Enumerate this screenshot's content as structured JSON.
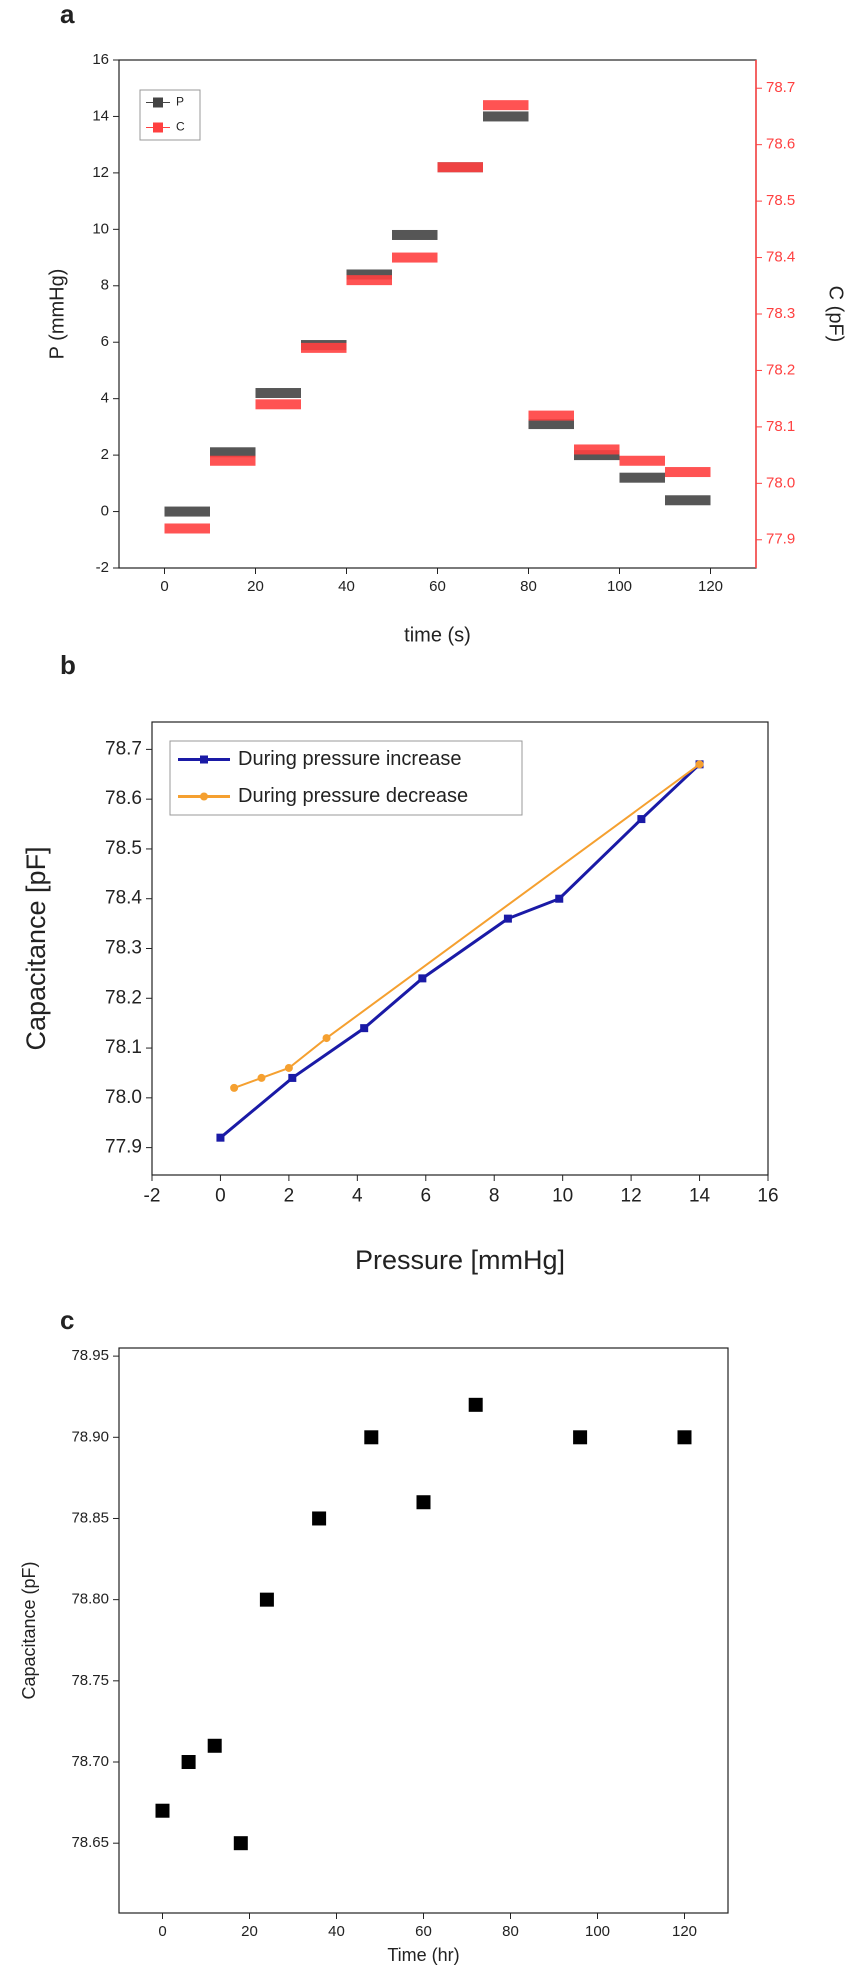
{
  "chart_data": [
    {
      "type": "step",
      "panel_label": "a",
      "x_label": "time (s)",
      "y_label": "P (mmHg)",
      "y2_label": "C (pF)",
      "x": [
        0,
        10,
        20,
        30,
        40,
        50,
        60,
        70,
        80,
        90,
        100,
        110
      ],
      "series": [
        {
          "name": "P",
          "color": "#444444",
          "values": [
            0,
            2.1,
            4.2,
            5.9,
            8.4,
            9.8,
            12.2,
            14.0,
            3.1,
            2.0,
            1.2,
            0.4
          ]
        },
        {
          "name": "C",
          "color": "#ff4040",
          "axis": "y2",
          "values": [
            77.92,
            78.04,
            78.14,
            78.24,
            78.36,
            78.4,
            78.56,
            78.67,
            78.12,
            78.06,
            78.04,
            78.02
          ]
        }
      ],
      "xlim": [
        -10,
        130
      ],
      "xticks": [
        0,
        20,
        40,
        60,
        80,
        100,
        120
      ],
      "ylim": [
        -2,
        16
      ],
      "yticks": [
        -2,
        0,
        2,
        4,
        6,
        8,
        10,
        12,
        14,
        16
      ],
      "y2lim": [
        77.85,
        78.75
      ],
      "y2ticks": [
        77.9,
        {
          "value": 78,
          "label": "78.0"
        },
        78.1,
        78.2,
        78.3,
        78.4,
        78.5,
        78.6,
        78.7
      ]
    },
    {
      "type": "line",
      "panel_label": "b",
      "x_label": "Pressure [mmHg]",
      "y_label": "Capacitance [pF]",
      "series": [
        {
          "name": "During pressure increase",
          "color": "#1a1aa6",
          "marker": "square",
          "x": [
            0,
            2.1,
            4.2,
            5.9,
            8.4,
            9.9,
            12.3,
            14
          ],
          "values": [
            77.92,
            78.04,
            78.14,
            78.24,
            78.36,
            78.4,
            78.56,
            78.67
          ]
        },
        {
          "name": "During pressure decrease",
          "color": "#f5a030",
          "marker": "circle",
          "x": [
            0.4,
            1.2,
            2.0,
            3.1,
            14
          ],
          "values": [
            78.02,
            78.04,
            78.06,
            78.12,
            78.67
          ]
        }
      ],
      "xlim": [
        -2,
        16
      ],
      "xticks": [
        -2,
        0,
        2,
        4,
        6,
        8,
        10,
        12,
        14,
        16
      ],
      "ylim": [
        77.845,
        78.755
      ],
      "yticks": [
        77.9,
        {
          "value": 78,
          "label": "78.0"
        },
        78.1,
        78.2,
        78.3,
        78.4,
        78.5,
        78.6,
        78.7
      ]
    },
    {
      "type": "scatter",
      "panel_label": "c",
      "x_label": "Time (hr)",
      "y_label": "Capacitance (pF)",
      "color": "#000000",
      "x": [
        0,
        6,
        12,
        18,
        24,
        36,
        48,
        60,
        72,
        96,
        120
      ],
      "values": [
        78.67,
        78.7,
        78.71,
        78.65,
        78.8,
        78.85,
        78.9,
        78.86,
        78.92,
        78.9,
        78.9
      ],
      "xlim": [
        -10,
        130
      ],
      "xticks": [
        0,
        20,
        40,
        60,
        80,
        100,
        120
      ],
      "ylim": [
        78.607,
        78.955
      ],
      "yticks": [
        78.65,
        {
          "value": 78.7,
          "label": "78.70"
        },
        78.75,
        {
          "value": 78.8,
          "label": "78.80"
        },
        78.85,
        {
          "value": 78.9,
          "label": "78.90"
        },
        78.95
      ]
    }
  ]
}
